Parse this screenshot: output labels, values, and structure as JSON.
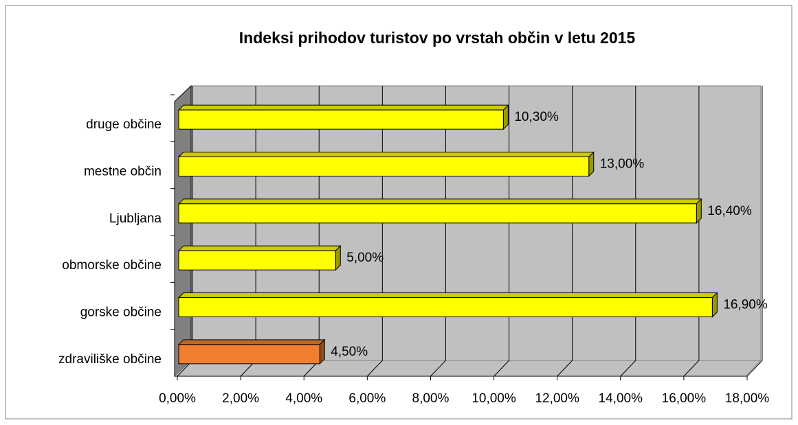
{
  "chart_data": {
    "type": "bar",
    "orientation": "horizontal",
    "title": "Indeksi prihodov turistov po vrstah občin v letu 2015",
    "categories": [
      "druge občine",
      "mestne občin",
      "Ljubljana",
      "obmorske občine",
      "gorske občine",
      "zdraviliške občine"
    ],
    "values": [
      10.3,
      13.0,
      16.4,
      5.0,
      16.9,
      4.5
    ],
    "value_labels": [
      "10,30%",
      "13,00%",
      "16,40%",
      "5,00%",
      "16,90%",
      "4,50%"
    ],
    "colors": [
      "#ffff00",
      "#ffff00",
      "#ffff00",
      "#ffff00",
      "#ffff00",
      "#f08030"
    ],
    "xlim": [
      0,
      18
    ],
    "xticks": [
      {
        "value": 0,
        "label": "0,00%"
      },
      {
        "value": 2,
        "label": "2,00%"
      },
      {
        "value": 4,
        "label": "4,00%"
      },
      {
        "value": 6,
        "label": "6,00%"
      },
      {
        "value": 8,
        "label": "8,00%"
      },
      {
        "value": 10,
        "label": "10,00%"
      },
      {
        "value": 12,
        "label": "12,00%"
      },
      {
        "value": 14,
        "label": "14,00%"
      },
      {
        "value": 16,
        "label": "16,00%"
      },
      {
        "value": 18,
        "label": "18,00%"
      }
    ],
    "grid": true
  }
}
